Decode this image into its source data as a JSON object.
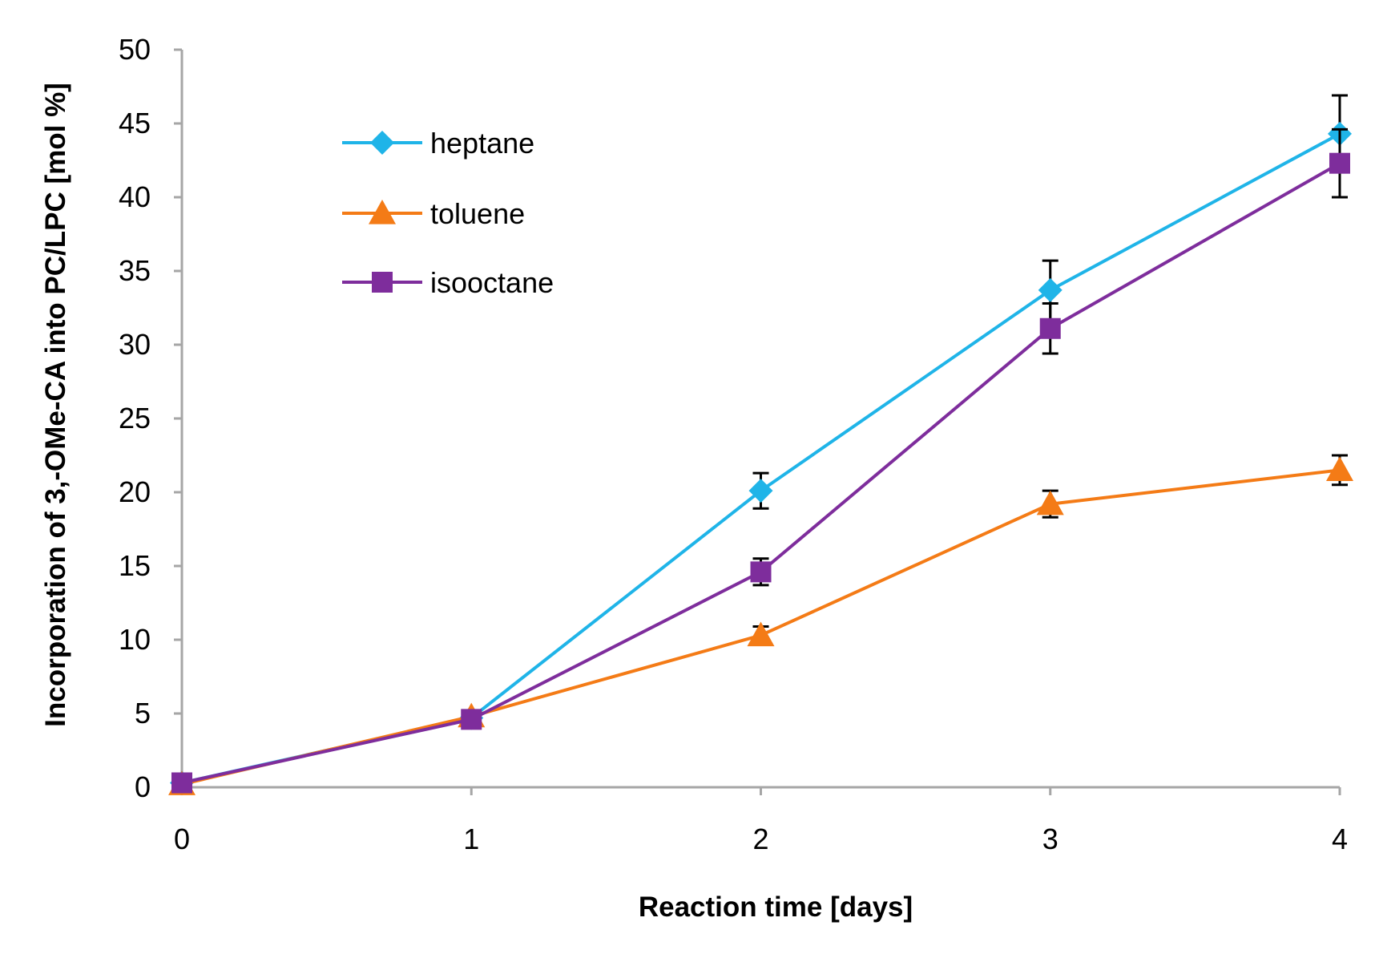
{
  "chart_data": {
    "type": "line",
    "title": "",
    "xlabel": "Reaction time [days]",
    "ylabel": "Incorporation of 3,-OMe-CA into PC/LPC [mol %]",
    "x": [
      0,
      1,
      2,
      3,
      4
    ],
    "xlim": [
      0,
      4
    ],
    "ylim": [
      0,
      50
    ],
    "x_ticks": [
      "0",
      "1",
      "2",
      "3",
      "4"
    ],
    "y_ticks": [
      "0",
      "5",
      "10",
      "15",
      "20",
      "25",
      "30",
      "35",
      "40",
      "45",
      "50"
    ],
    "grid": false,
    "legend_position": "top-left",
    "series": [
      {
        "name": "heptane",
        "color": "#1fb4e8",
        "marker": "diamond",
        "values": [
          0.3,
          4.7,
          20.1,
          33.7,
          44.3
        ],
        "errors": [
          0,
          0,
          1.2,
          2.0,
          2.6
        ]
      },
      {
        "name": "toluene",
        "color": "#f47b16",
        "marker": "triangle",
        "values": [
          0.2,
          4.8,
          10.3,
          19.2,
          21.5
        ],
        "errors": [
          0,
          0,
          0.6,
          0.9,
          1.0
        ]
      },
      {
        "name": "isooctane",
        "color": "#7e2d9c",
        "marker": "square",
        "values": [
          0.3,
          4.6,
          14.6,
          31.1,
          42.3
        ],
        "errors": [
          0,
          0,
          0.9,
          1.7,
          2.3
        ]
      }
    ]
  }
}
